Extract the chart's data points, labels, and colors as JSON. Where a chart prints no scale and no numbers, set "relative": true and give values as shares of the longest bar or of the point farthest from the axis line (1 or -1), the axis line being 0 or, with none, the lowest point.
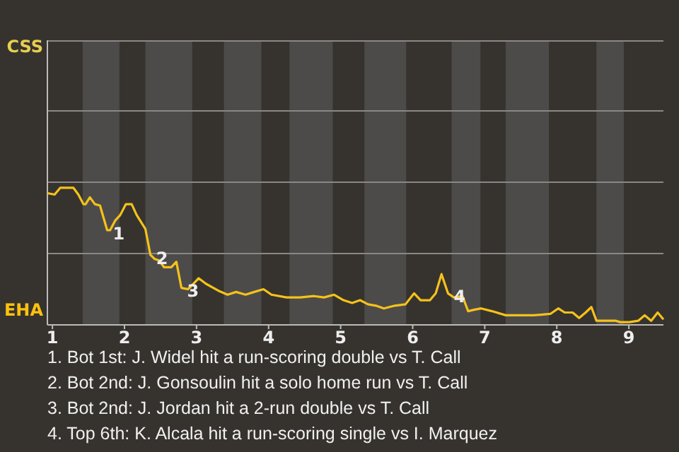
{
  "chart_data": {
    "type": "line",
    "relative": true,
    "xlim": [
      0.93,
      9.48
    ],
    "xticks": [
      1,
      2,
      3,
      4,
      5,
      6,
      7,
      8,
      9
    ],
    "marker": "none",
    "line_style": "solid",
    "ref_lines": [
      {
        "axis": "y",
        "value": 0.52,
        "color": "#8a8886"
      },
      {
        "axis": "y",
        "value": 1.04,
        "color": "#8a8886"
      },
      {
        "axis": "y",
        "value": 1.56,
        "color": "#8a8886"
      },
      {
        "axis": "y",
        "value": 2.07,
        "color": "#8a8886"
      }
    ],
    "bands": [
      {
        "axis": "x",
        "from": 1.42,
        "to": 1.93,
        "color": "#4d4b49"
      },
      {
        "axis": "x",
        "from": 2.29,
        "to": 2.94,
        "color": "#4d4b49"
      },
      {
        "axis": "x",
        "from": 3.38,
        "to": 3.9,
        "color": "#4d4b49"
      },
      {
        "axis": "x",
        "from": 4.29,
        "to": 4.89,
        "color": "#4d4b49"
      },
      {
        "axis": "x",
        "from": 5.33,
        "to": 5.91,
        "color": "#4d4b49"
      },
      {
        "axis": "x",
        "from": 6.54,
        "to": 6.94,
        "color": "#4d4b49"
      },
      {
        "axis": "x",
        "from": 7.29,
        "to": 7.89,
        "color": "#4d4b49"
      },
      {
        "axis": "x",
        "from": 8.55,
        "to": 8.93,
        "color": "#4d4b49"
      }
    ],
    "series": [
      {
        "color": "#f5c21b",
        "x": [
          0.93,
          1.03,
          1.11,
          1.29,
          1.36,
          1.43,
          1.46,
          1.52,
          1.59,
          1.66,
          1.76,
          1.8,
          1.87,
          1.94,
          2.02,
          2.1,
          2.17,
          2.29,
          2.36,
          2.42,
          2.48,
          2.55,
          2.65,
          2.72,
          2.79,
          2.88,
          2.94,
          3.03,
          3.13,
          3.3,
          3.43,
          3.55,
          3.68,
          3.8,
          3.93,
          4.04,
          4.25,
          4.44,
          4.63,
          4.77,
          4.91,
          5.04,
          5.16,
          5.27,
          5.38,
          5.49,
          5.6,
          5.75,
          5.9,
          6.02,
          6.11,
          6.24,
          6.32,
          6.4,
          6.49,
          6.57,
          6.69,
          6.77,
          6.85,
          6.95,
          7.1,
          7.29,
          7.49,
          7.68,
          7.91,
          8.02,
          8.11,
          8.22,
          8.31,
          8.4,
          8.48,
          8.55,
          8.82,
          8.88,
          9.01,
          9.13,
          9.22,
          9.31,
          9.4,
          9.48
        ],
        "values": [
          0.96,
          0.95,
          1,
          1,
          0.95,
          0.88,
          0.88,
          0.93,
          0.88,
          0.87,
          0.69,
          0.69,
          0.76,
          0.8,
          0.88,
          0.88,
          0.8,
          0.7,
          0.51,
          0.48,
          0.47,
          0.42,
          0.42,
          0.46,
          0.27,
          0.26,
          0.29,
          0.34,
          0.3,
          0.25,
          0.22,
          0.24,
          0.22,
          0.24,
          0.26,
          0.22,
          0.2,
          0.2,
          0.21,
          0.2,
          0.22,
          0.18,
          0.16,
          0.18,
          0.15,
          0.14,
          0.12,
          0.14,
          0.15,
          0.23,
          0.18,
          0.18,
          0.23,
          0.37,
          0.23,
          0.2,
          0.21,
          0.1,
          0.11,
          0.12,
          0.1,
          0.07,
          0.07,
          0.07,
          0.08,
          0.12,
          0.09,
          0.09,
          0.05,
          0.09,
          0.13,
          0.03,
          0.03,
          0.02,
          0.02,
          0.03,
          0.07,
          0.03,
          0.09,
          0.04
        ]
      }
    ],
    "annotations": [
      "CSS",
      "EHA",
      {
        "text": "1",
        "x": 1.76,
        "y": 0.69
      },
      {
        "text": "2",
        "x": 2.36,
        "y": 0.51
      },
      {
        "text": "3",
        "x": 2.79,
        "y": 0.27
      },
      {
        "text": "4",
        "x": 6.49,
        "y": 0.23
      },
      "1. Bot 1st: J. Widel hit a run-scoring double vs T. Call",
      "2. Bot 2nd: J. Gonsoulin hit a solo home run vs T. Call",
      "3. Bot 2nd: J. Jordan hit a 2-run double vs T. Call",
      "4. Top 6th: K. Alcala hit a run-scoring single vs I. Marquez"
    ]
  }
}
